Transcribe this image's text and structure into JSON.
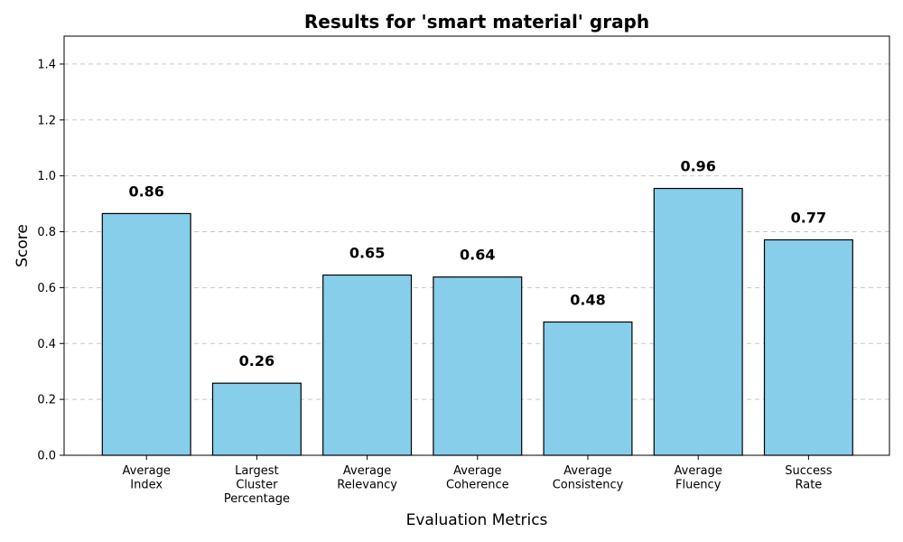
{
  "chart_data": {
    "type": "bar",
    "title": "Results for 'smart material' graph",
    "xlabel": "Evaluation Metrics",
    "ylabel": "Score",
    "categories": [
      [
        "Average",
        "Index"
      ],
      [
        "Largest",
        "Cluster",
        "Percentage"
      ],
      [
        "Average",
        "Relevancy"
      ],
      [
        "Average",
        "Coherence"
      ],
      [
        "Average",
        "Consistency"
      ],
      [
        "Average",
        "Fluency"
      ],
      [
        "Success",
        "Rate"
      ]
    ],
    "values": [
      0.865,
      0.258,
      0.645,
      0.638,
      0.477,
      0.955,
      0.771
    ],
    "data_labels": [
      "0.86",
      "0.26",
      "0.65",
      "0.64",
      "0.48",
      "0.96",
      "0.77"
    ],
    "ylim": [
      0,
      1.5
    ],
    "yticks": [
      0.0,
      0.2,
      0.4,
      0.6,
      0.8,
      1.0,
      1.2,
      1.4
    ],
    "ytick_labels": [
      "0.0",
      "0.2",
      "0.4",
      "0.6",
      "0.8",
      "1.0",
      "1.2",
      "1.4"
    ],
    "grid": "y-dashed",
    "bar_color": "#87ceeb",
    "edge_color": "#000000"
  }
}
